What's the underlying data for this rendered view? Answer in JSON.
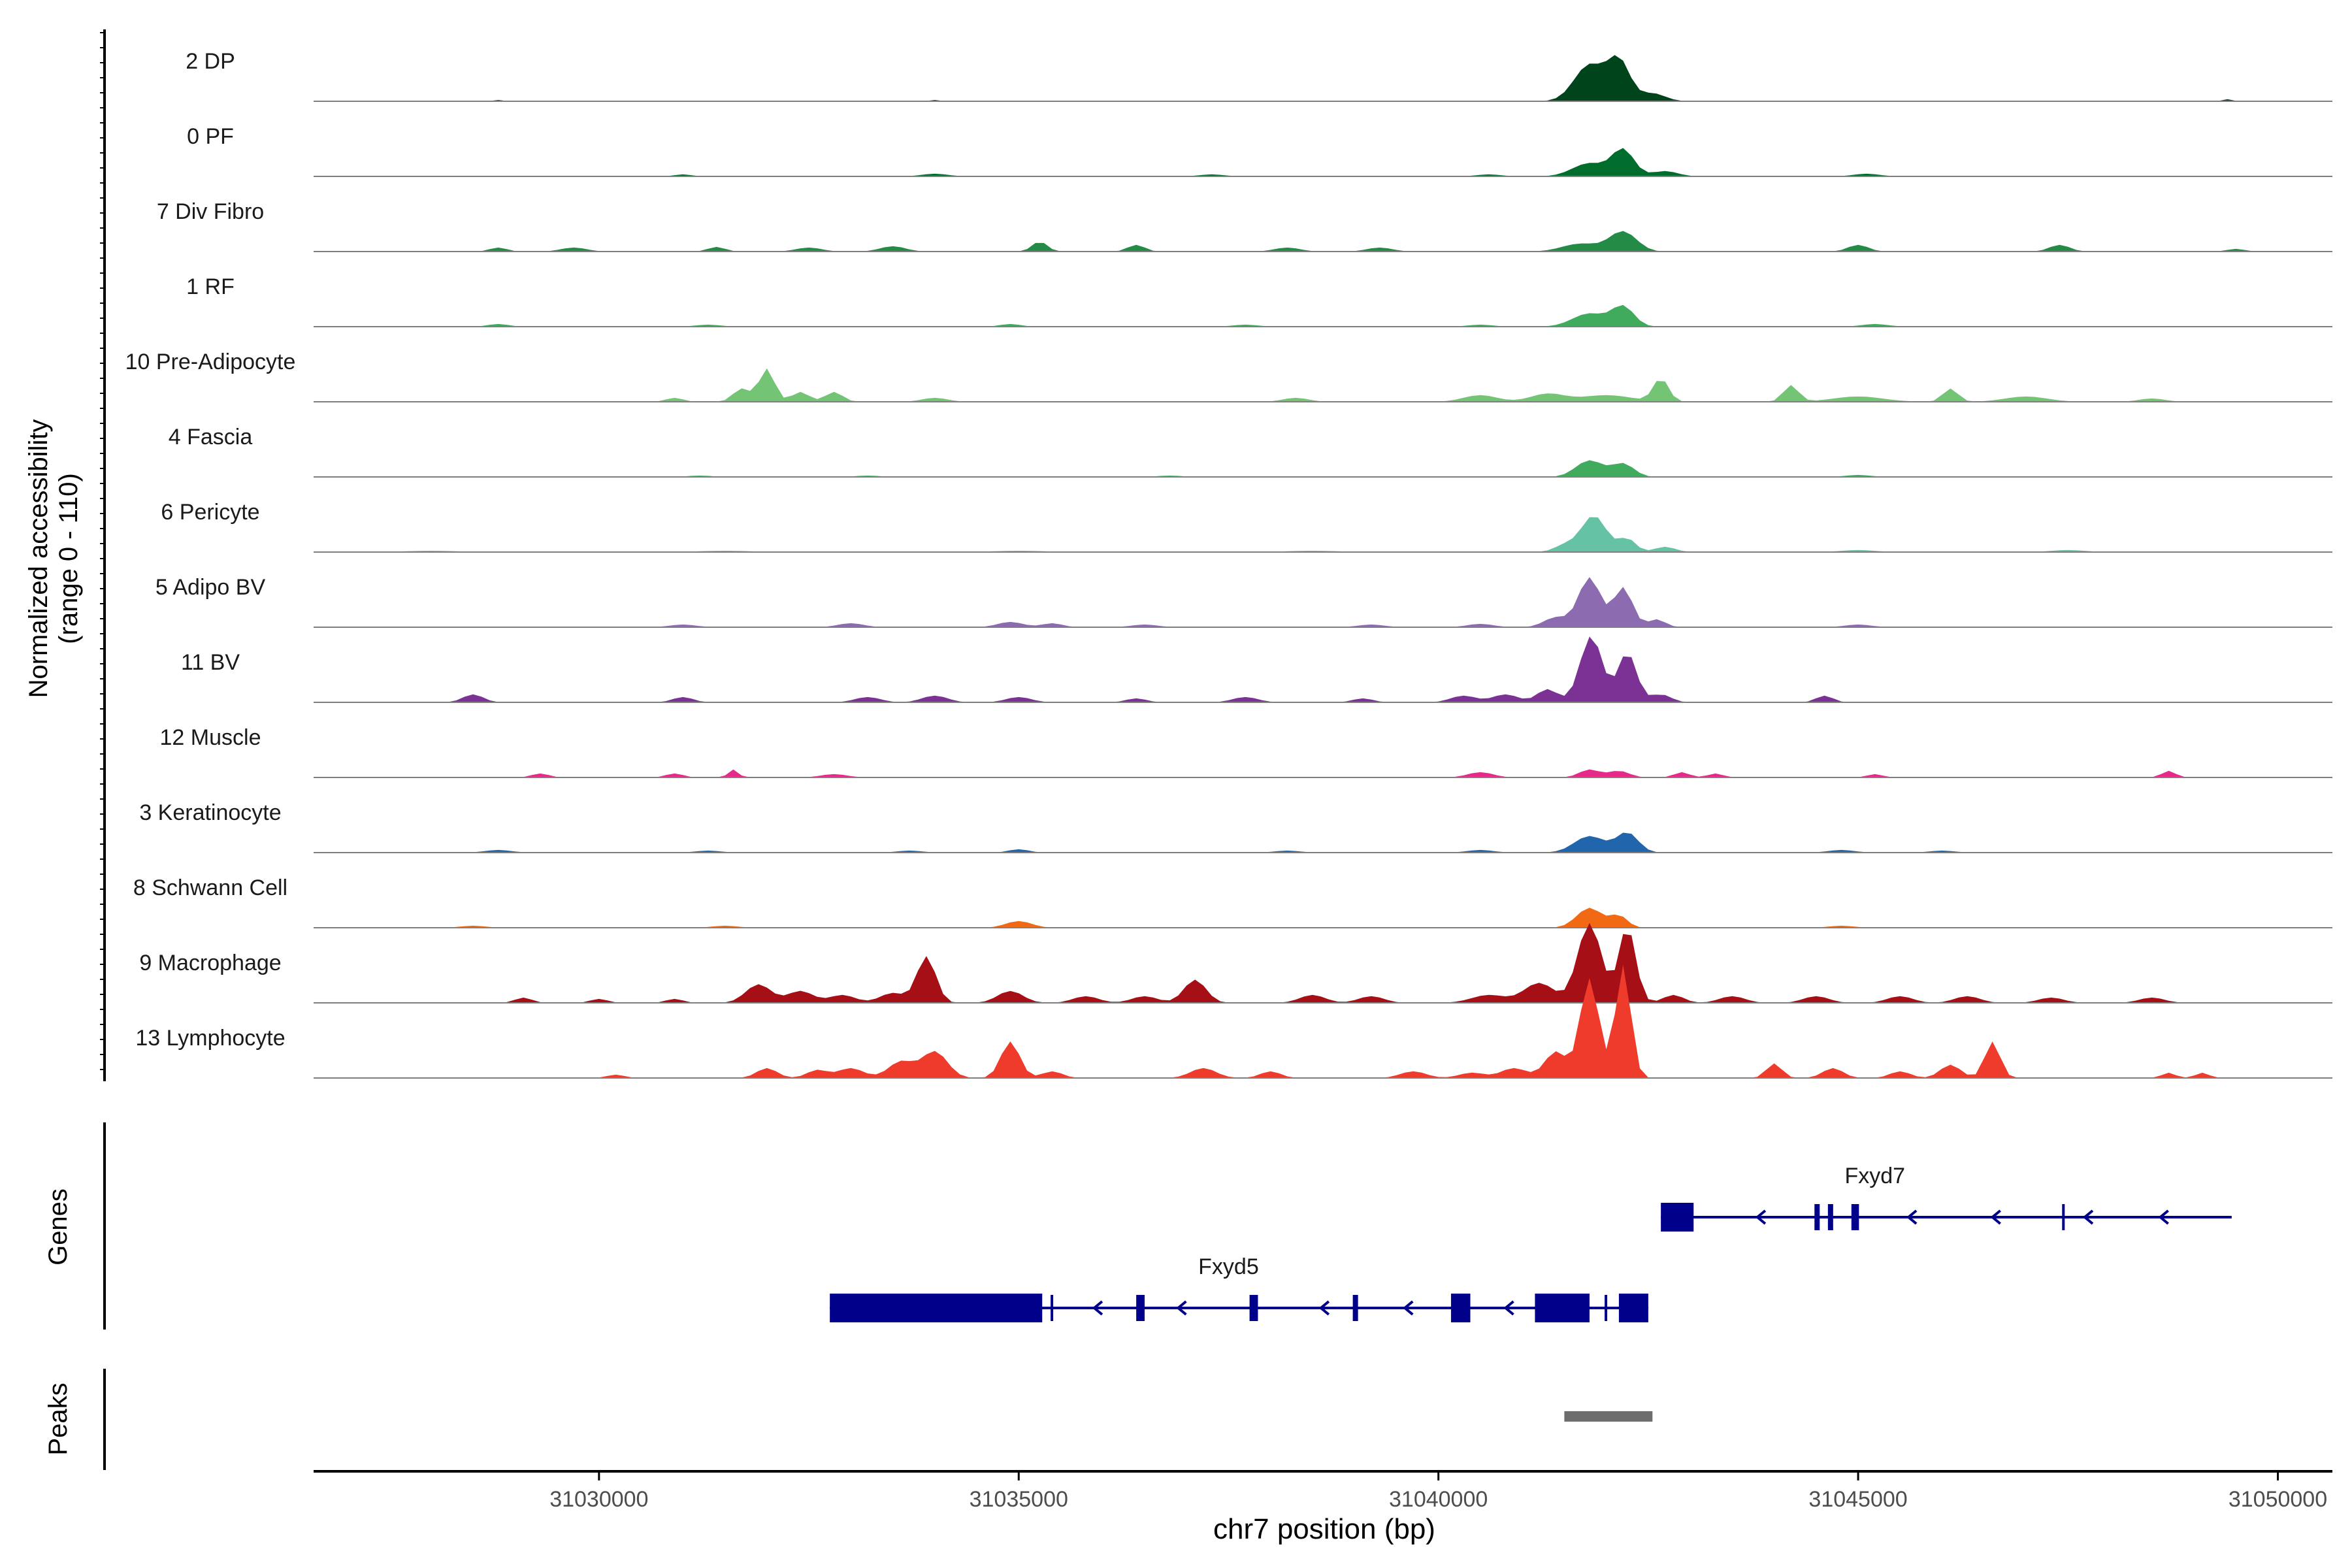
{
  "chart_data": {
    "type": "area",
    "chromosome": "chr7",
    "xlim": [
      31026600,
      31050650
    ],
    "ylim": [
      0,
      110
    ],
    "ylabel_line1": "Normalized accessibility",
    "ylabel_line2": "(range 0 - 110)",
    "xlabel": "chr7 position (bp)",
    "x_ticks": [
      31030000,
      31035000,
      31040000,
      31045000,
      31050000
    ],
    "x_tick_labels": [
      "31030000",
      "31035000",
      "31040000",
      "31045000",
      "31050000"
    ],
    "genes_label": "Genes",
    "peaks_label": "Peaks",
    "tracks": [
      {
        "label": "2 DP",
        "color": "#00441b",
        "peaks": [
          [
            31041800,
            55,
            180
          ],
          [
            31042150,
            60,
            130
          ],
          [
            31042550,
            12,
            150
          ],
          [
            31028800,
            2,
            60
          ],
          [
            31034000,
            2,
            60
          ],
          [
            31049400,
            3,
            60
          ]
        ]
      },
      {
        "label": "0 PF",
        "color": "#006d2c",
        "peaks": [
          [
            31041800,
            20,
            200
          ],
          [
            31042200,
            40,
            130
          ],
          [
            31042700,
            8,
            150
          ],
          [
            31037300,
            3,
            150
          ],
          [
            31040600,
            3,
            150
          ],
          [
            31031000,
            3,
            100
          ],
          [
            31034000,
            4,
            150
          ],
          [
            31045100,
            4,
            150
          ]
        ]
      },
      {
        "label": "7 Div Fibro",
        "color": "#238b45",
        "peaks": [
          [
            31042200,
            30,
            160
          ],
          [
            31041700,
            12,
            220
          ],
          [
            31035250,
            15,
            90
          ],
          [
            31036400,
            10,
            100
          ],
          [
            31038200,
            6,
            150
          ],
          [
            31039300,
            6,
            150
          ],
          [
            31033500,
            8,
            150
          ],
          [
            31032500,
            6,
            150
          ],
          [
            31045000,
            10,
            120
          ],
          [
            31047400,
            10,
            120
          ],
          [
            31028800,
            6,
            100
          ],
          [
            31029700,
            6,
            150
          ],
          [
            31031400,
            7,
            100
          ],
          [
            31049500,
            4,
            100
          ]
        ]
      },
      {
        "label": "1 RF",
        "color": "#41ab5d",
        "peaks": [
          [
            31041800,
            20,
            200
          ],
          [
            31042200,
            30,
            130
          ],
          [
            31028800,
            4,
            120
          ],
          [
            31031300,
            3,
            150
          ],
          [
            31034900,
            4,
            120
          ],
          [
            31037700,
            3,
            150
          ],
          [
            31040500,
            3,
            150
          ],
          [
            31045200,
            4,
            150
          ]
        ]
      },
      {
        "label": "10 Pre-Adipocyte",
        "color": "#74c476",
        "peaks": [
          [
            31032000,
            50,
            90
          ],
          [
            31031700,
            20,
            100
          ],
          [
            31032400,
            15,
            100
          ],
          [
            31032800,
            15,
            100
          ],
          [
            31042650,
            35,
            90
          ],
          [
            31044200,
            25,
            90
          ],
          [
            31046100,
            20,
            90
          ],
          [
            31041300,
            12,
            200
          ],
          [
            31042000,
            10,
            300
          ],
          [
            31040500,
            10,
            200
          ],
          [
            31045000,
            8,
            300
          ],
          [
            31047000,
            8,
            250
          ],
          [
            31030900,
            6,
            100
          ],
          [
            31034000,
            6,
            150
          ],
          [
            31038300,
            6,
            150
          ],
          [
            31048500,
            5,
            150
          ]
        ]
      },
      {
        "label": "4 Fascia",
        "color": "#41ab5d",
        "peaks": [
          [
            31041800,
            25,
            160
          ],
          [
            31042200,
            20,
            130
          ],
          [
            31031200,
            2,
            150
          ],
          [
            31033200,
            2,
            150
          ],
          [
            31036800,
            2,
            150
          ],
          [
            31045000,
            3,
            150
          ]
        ]
      },
      {
        "label": "6 Pericyte",
        "color": "#66c2a5",
        "peaks": [
          [
            31041850,
            55,
            150
          ],
          [
            31042250,
            20,
            100
          ],
          [
            31041500,
            10,
            120
          ],
          [
            31042700,
            8,
            120
          ],
          [
            31028000,
            2,
            300
          ],
          [
            31031500,
            2,
            300
          ],
          [
            31035000,
            2,
            300
          ],
          [
            31038500,
            2,
            300
          ],
          [
            31045000,
            3,
            200
          ],
          [
            31047500,
            3,
            200
          ]
        ]
      },
      {
        "label": "5 Adipo BV",
        "color": "#8c6bb1",
        "peaks": [
          [
            31041800,
            75,
            130
          ],
          [
            31042200,
            60,
            110
          ],
          [
            31041400,
            15,
            140
          ],
          [
            31042600,
            12,
            100
          ],
          [
            31033000,
            6,
            150
          ],
          [
            31034900,
            8,
            150
          ],
          [
            31035400,
            6,
            120
          ],
          [
            31031000,
            4,
            150
          ],
          [
            31036500,
            4,
            150
          ],
          [
            31039200,
            4,
            150
          ],
          [
            31040500,
            5,
            150
          ],
          [
            31045000,
            4,
            150
          ]
        ]
      },
      {
        "label": "11 BV",
        "color": "#7b3294",
        "peaks": [
          [
            31041820,
            100,
            130
          ],
          [
            31042250,
            75,
            110
          ],
          [
            31041300,
            20,
            120
          ],
          [
            31042650,
            12,
            120
          ],
          [
            31040800,
            12,
            150
          ],
          [
            31040300,
            10,
            150
          ],
          [
            31028500,
            12,
            120
          ],
          [
            31031000,
            8,
            120
          ],
          [
            31033200,
            8,
            150
          ],
          [
            31034000,
            10,
            150
          ],
          [
            31035000,
            8,
            150
          ],
          [
            31036400,
            6,
            120
          ],
          [
            31037700,
            8,
            150
          ],
          [
            31039100,
            6,
            120
          ],
          [
            31044600,
            10,
            100
          ]
        ]
      },
      {
        "label": "12 Muscle",
        "color": "#e7298a",
        "peaks": [
          [
            31031600,
            12,
            60
          ],
          [
            31041800,
            12,
            120
          ],
          [
            31042150,
            10,
            120
          ],
          [
            31040500,
            8,
            150
          ],
          [
            31029300,
            6,
            100
          ],
          [
            31030900,
            6,
            100
          ],
          [
            31032800,
            5,
            150
          ],
          [
            31042900,
            8,
            90
          ],
          [
            31043300,
            6,
            90
          ],
          [
            31045200,
            5,
            90
          ],
          [
            31048700,
            10,
            80
          ]
        ]
      },
      {
        "label": "3 Keratinocyte",
        "color": "#2166ac",
        "peaks": [
          [
            31041800,
            25,
            180
          ],
          [
            31042250,
            30,
            130
          ],
          [
            31035000,
            5,
            120
          ],
          [
            31028800,
            4,
            150
          ],
          [
            31031300,
            3,
            150
          ],
          [
            31033700,
            3,
            150
          ],
          [
            31038200,
            3,
            150
          ],
          [
            31040500,
            4,
            150
          ],
          [
            31044800,
            4,
            150
          ],
          [
            31046000,
            3,
            150
          ]
        ]
      },
      {
        "label": "8 Schwann Cell",
        "color": "#f16913",
        "peaks": [
          [
            31041800,
            30,
            150
          ],
          [
            31042150,
            18,
            100
          ],
          [
            31035000,
            10,
            150
          ],
          [
            31028500,
            3,
            150
          ],
          [
            31031500,
            3,
            150
          ],
          [
            31044800,
            3,
            150
          ]
        ]
      },
      {
        "label": "9 Macrophage",
        "color": "#a50f15",
        "peaks": [
          [
            31041800,
            120,
            140
          ],
          [
            31042250,
            115,
            100
          ],
          [
            31041200,
            30,
            180
          ],
          [
            31040600,
            12,
            200
          ],
          [
            31033900,
            70,
            110
          ],
          [
            31031900,
            28,
            150
          ],
          [
            31032400,
            18,
            150
          ],
          [
            31032900,
            12,
            150
          ],
          [
            31033500,
            15,
            150
          ],
          [
            31034900,
            18,
            150
          ],
          [
            31035800,
            10,
            150
          ],
          [
            31036500,
            10,
            150
          ],
          [
            31037100,
            35,
            130
          ],
          [
            31038500,
            12,
            150
          ],
          [
            31039200,
            10,
            150
          ],
          [
            31042800,
            12,
            120
          ],
          [
            31043500,
            10,
            150
          ],
          [
            31044500,
            10,
            150
          ],
          [
            31045500,
            10,
            150
          ],
          [
            31046300,
            10,
            150
          ],
          [
            31047300,
            8,
            150
          ],
          [
            31048500,
            8,
            150
          ],
          [
            31029100,
            8,
            100
          ],
          [
            31030000,
            6,
            100
          ],
          [
            31030900,
            6,
            100
          ]
        ]
      },
      {
        "label": "13 Lymphocyte",
        "color": "#ef3b2c",
        "peaks": [
          [
            31041800,
            150,
            110
          ],
          [
            31042200,
            170,
            90
          ],
          [
            31041400,
            40,
            130
          ],
          [
            31040900,
            15,
            150
          ],
          [
            31040400,
            8,
            150
          ],
          [
            31034000,
            40,
            150
          ],
          [
            31033600,
            25,
            150
          ],
          [
            31034900,
            55,
            110
          ],
          [
            31033000,
            15,
            150
          ],
          [
            31032000,
            15,
            120
          ],
          [
            31032600,
            12,
            120
          ],
          [
            31035400,
            10,
            120
          ],
          [
            31037200,
            15,
            150
          ],
          [
            31038000,
            10,
            120
          ],
          [
            31039700,
            10,
            150
          ],
          [
            31044000,
            22,
            90
          ],
          [
            31044700,
            15,
            120
          ],
          [
            31045500,
            10,
            120
          ],
          [
            31046100,
            20,
            120
          ],
          [
            31046600,
            55,
            90
          ],
          [
            31048700,
            8,
            80
          ],
          [
            31049100,
            8,
            80
          ],
          [
            31030200,
            5,
            100
          ]
        ]
      }
    ],
    "genes": [
      {
        "name": "Fxyd7",
        "strand": "-",
        "start": 31042650,
        "end": 31049450,
        "row": 0,
        "exons": [
          [
            31042650,
            31043040,
            "thick"
          ],
          [
            31044480,
            31044530,
            "thin"
          ],
          [
            31044640,
            31044700,
            "thin"
          ],
          [
            31044920,
            31045010,
            "thin"
          ],
          [
            31047430,
            31047470,
            "tick"
          ]
        ],
        "arrows": [
          31043800,
          31045600,
          31046600,
          31047700,
          31048600
        ]
      },
      {
        "name": "Fxyd5",
        "strand": "-",
        "start": 31032750,
        "end": 31042500,
        "row": 1,
        "exons": [
          [
            31032750,
            31035280,
            "thick"
          ],
          [
            31035380,
            31035420,
            "tick"
          ],
          [
            31036400,
            31036500,
            "thin"
          ],
          [
            31037750,
            31037850,
            "thin"
          ],
          [
            31038980,
            31039030,
            "thin"
          ],
          [
            31040150,
            31040380,
            "thick"
          ],
          [
            31041150,
            31041800,
            "thick"
          ],
          [
            31041980,
            31042030,
            "tick"
          ],
          [
            31042150,
            31042500,
            "thick"
          ]
        ],
        "arrows": [
          31035900,
          31036900,
          31038600,
          31039600,
          31040800
        ]
      }
    ],
    "peaks_regions": [
      [
        31041500,
        31042550
      ]
    ]
  },
  "colors": {
    "gene": "#00008b",
    "peak": "#6e6e6e",
    "baseline": "#7f7f7f",
    "axis": "#000000",
    "text": "#1a1a1a"
  }
}
